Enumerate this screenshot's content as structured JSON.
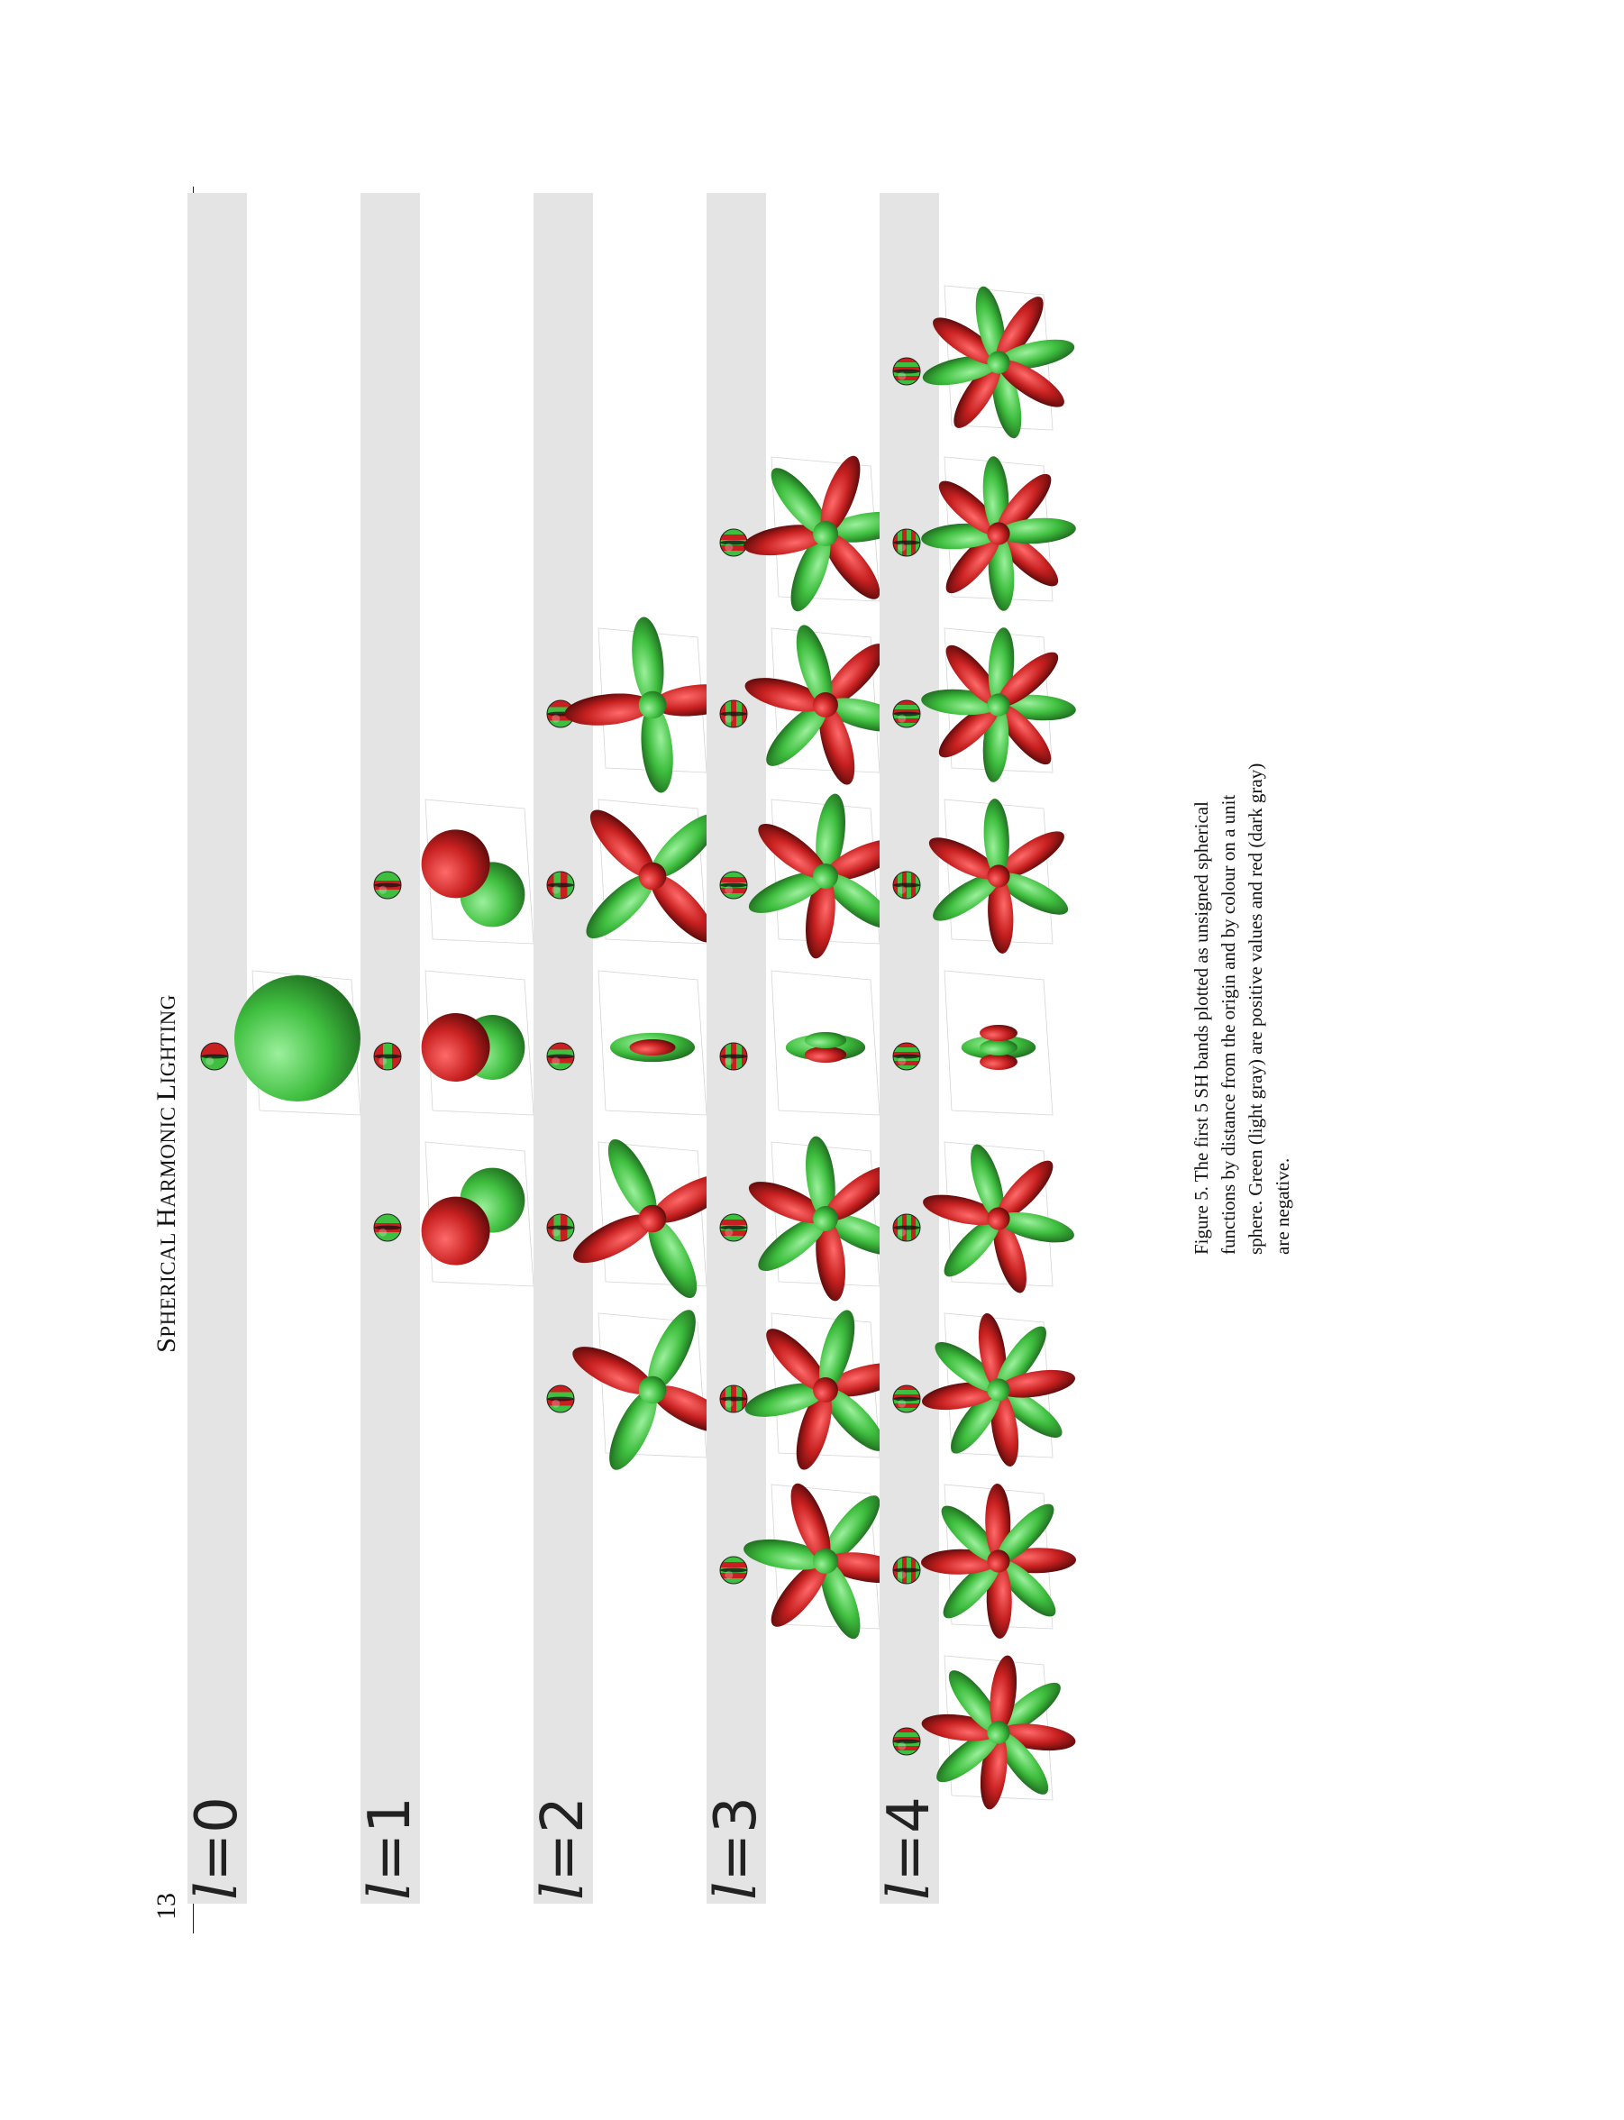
{
  "header": {
    "page_number": "13",
    "running_head_first": "S",
    "running_head_rest1": "PHERICAL ",
    "running_head_mid": "H",
    "running_head_rest2": "ARMONIC ",
    "running_head_last": "L",
    "running_head_rest3": "IGHTING"
  },
  "bands": [
    {
      "l": "0",
      "count": 1
    },
    {
      "l": "1",
      "count": 3
    },
    {
      "l": "2",
      "count": 5
    },
    {
      "l": "3",
      "count": 7
    },
    {
      "l": "4",
      "count": 9
    }
  ],
  "label_prefix": "l",
  "label_eq": "=",
  "caption": "Figure 5. The first 5 SH bands plotted as unsigned spherical functions by distance from the origin and by colour on a unit sphere. Green (light gray) are positive values and red (dark gray) are negative.",
  "colors": {
    "positive": "#3fbf3f",
    "negative": "#c82020",
    "band_background": "#e4e4e4"
  }
}
